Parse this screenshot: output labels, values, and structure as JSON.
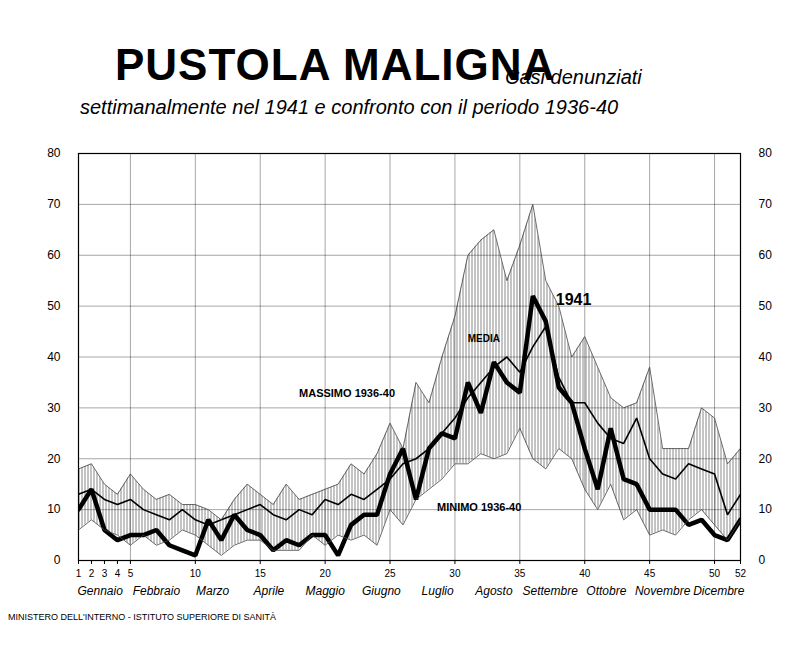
{
  "chart_data": {
    "type": "line",
    "title": "PUSTOLA MALIGNA",
    "subtitle": "Casi denunziati settimanalmente nel 1941 e confronto con il periodo 1936-40",
    "source": "MINISTERO DELL'INTERNO - ISTITUTO SUPERIORE DI SANITÀ",
    "months": [
      "Gennaio",
      "Febbraio",
      "Marzo",
      "Aprile",
      "Maggio",
      "Giugno",
      "Luglio",
      "Agosto",
      "Settembre",
      "Ottobre",
      "Novembre",
      "Dicembre"
    ],
    "x": [
      1,
      2,
      3,
      4,
      5,
      6,
      7,
      8,
      9,
      10,
      11,
      12,
      13,
      14,
      15,
      16,
      17,
      18,
      19,
      20,
      21,
      22,
      23,
      24,
      25,
      26,
      27,
      28,
      29,
      30,
      31,
      32,
      33,
      34,
      35,
      36,
      37,
      38,
      39,
      40,
      41,
      42,
      43,
      44,
      45,
      46,
      47,
      48,
      49,
      50,
      51,
      52
    ],
    "series": [
      {
        "name": "1941",
        "color": "#000000",
        "line_style": "bold",
        "type": "line",
        "values": [
          10,
          14,
          6,
          4,
          5,
          5,
          6,
          3,
          2,
          1,
          8,
          4,
          9,
          6,
          5,
          2,
          4,
          3,
          5,
          5,
          1,
          7,
          9,
          9,
          17,
          22,
          12,
          22,
          25,
          24,
          35,
          29,
          39,
          35,
          33,
          52,
          47,
          34,
          31,
          22,
          14,
          26,
          16,
          15,
          10,
          10,
          10,
          7,
          8,
          5,
          4,
          8
        ]
      },
      {
        "name": "MEDIA",
        "color": "#000000",
        "line_style": "solid",
        "type": "line",
        "values": [
          13,
          14,
          12,
          11,
          12,
          10,
          9,
          8,
          10,
          8,
          7,
          8,
          9,
          10,
          11,
          9,
          8,
          10,
          9,
          12,
          11,
          13,
          12,
          14,
          16,
          19,
          20,
          22,
          25,
          28,
          32,
          35,
          38,
          40,
          37,
          42,
          46,
          36,
          31,
          31,
          27,
          24,
          23,
          28,
          20,
          17,
          16,
          19,
          18,
          17,
          9,
          13
        ]
      },
      {
        "name": "MASSIMO 1936-40",
        "color": "#444444",
        "line_style": "thin",
        "type": "band",
        "values": [
          18,
          19,
          15,
          13,
          17,
          14,
          12,
          13,
          11,
          11,
          10,
          8,
          12,
          15,
          13,
          11,
          15,
          12,
          13,
          14,
          15,
          19,
          17,
          21,
          27,
          22,
          35,
          31,
          40,
          48,
          60,
          63,
          65,
          55,
          62,
          70,
          55,
          50,
          40,
          44,
          38,
          32,
          30,
          31,
          38,
          22,
          22,
          22,
          30,
          28,
          19,
          22
        ]
      },
      {
        "name": "MINIMO 1936-40",
        "color": "#444444",
        "line_style": "thin",
        "type": "band",
        "values": [
          6,
          8,
          6,
          5,
          3,
          5,
          3,
          4,
          6,
          5,
          3,
          1,
          3,
          4,
          4,
          2,
          2,
          2,
          5,
          3,
          5,
          4,
          5,
          3,
          10,
          7,
          12,
          14,
          16,
          19,
          19,
          21,
          20,
          21,
          26,
          20,
          18,
          22,
          20,
          14,
          10,
          15,
          8,
          10,
          5,
          6,
          5,
          8,
          10,
          7,
          4,
          8
        ]
      }
    ],
    "xlim": [
      1,
      52
    ],
    "xticks": [
      1,
      2,
      3,
      4,
      5,
      10,
      15,
      20,
      25,
      30,
      35,
      40,
      45,
      50,
      52
    ],
    "ylim": [
      0,
      80
    ],
    "yticks": [
      0,
      10,
      20,
      30,
      40,
      50,
      60,
      70,
      80
    ],
    "y2lim": [
      0,
      80
    ],
    "y2ticks": [
      0,
      10,
      20,
      30,
      40,
      50,
      60,
      70,
      80
    ],
    "grid": true
  }
}
